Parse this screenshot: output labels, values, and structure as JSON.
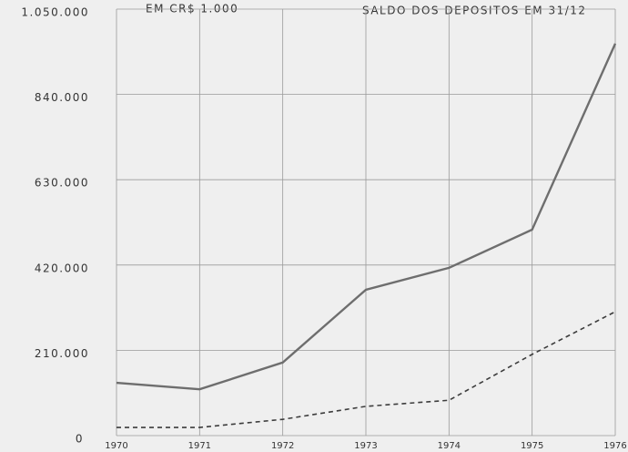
{
  "chart_data": {
    "type": "line",
    "title": "SALDO DOS DEPOSITOS EM 31/12",
    "subtitle": "EM CR$ 1.000",
    "categories": [
      "1970",
      "1971",
      "1972",
      "1973",
      "1974",
      "1975",
      "1976"
    ],
    "series": [
      {
        "color": "#6e6e6e",
        "line_style": "solid",
        "values": [
          130000,
          114000,
          180000,
          359000,
          413000,
          507000,
          965000
        ]
      },
      {
        "color": "#3c3c3c",
        "line_style": "dashed",
        "values": [
          20000,
          20000,
          40000,
          72000,
          87000,
          200000,
          305000
        ]
      }
    ],
    "ylim": [
      0,
      1050000
    ],
    "yticks": [
      0,
      {
        "value": 210000,
        "label": "210.000"
      },
      {
        "value": 420000,
        "label": "420.000"
      },
      {
        "value": 630000,
        "label": "630.000"
      },
      {
        "value": 840000,
        "label": "840.000"
      },
      {
        "value": 1050000,
        "label": "1.050.000"
      }
    ],
    "grid": true
  }
}
